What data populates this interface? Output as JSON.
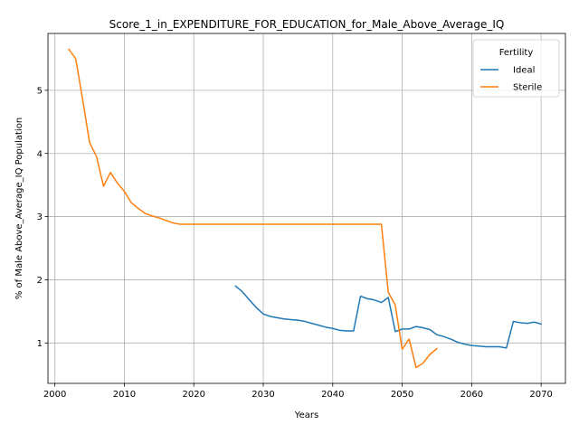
{
  "chart_data": {
    "type": "line",
    "title": "Score_1_in_EXPENDITURE_FOR_EDUCATION_for_Male_Above_Average_IQ",
    "xlabel": "Years",
    "ylabel": "% of Male Above_Average_IQ Population",
    "xlim": [
      1999,
      2073.5
    ],
    "ylim": [
      0.36,
      5.9
    ],
    "xticks": [
      2000,
      2010,
      2020,
      2030,
      2040,
      2050,
      2060,
      2070
    ],
    "yticks": [
      1,
      2,
      3,
      4,
      5
    ],
    "grid": true,
    "legend": {
      "title": "Fertility",
      "placement": "top-right"
    },
    "series": [
      {
        "name": "Ideal",
        "color": "#1f77b4",
        "x": [
          2026,
          2027,
          2028,
          2029,
          2030,
          2031,
          2032,
          2033,
          2034,
          2035,
          2036,
          2037,
          2038,
          2039,
          2040,
          2041,
          2042,
          2043,
          2044,
          2045,
          2046,
          2047,
          2048,
          2049,
          2050,
          2051,
          2052,
          2053,
          2054,
          2055,
          2056,
          2057,
          2058,
          2059,
          2060,
          2061,
          2062,
          2063,
          2064,
          2065,
          2066,
          2067,
          2068,
          2069,
          2070
        ],
        "y": [
          1.9,
          1.81,
          1.68,
          1.56,
          1.46,
          1.42,
          1.4,
          1.38,
          1.37,
          1.36,
          1.34,
          1.31,
          1.28,
          1.25,
          1.23,
          1.2,
          1.19,
          1.19,
          1.74,
          1.7,
          1.68,
          1.64,
          1.72,
          1.18,
          1.22,
          1.22,
          1.26,
          1.24,
          1.21,
          1.13,
          1.1,
          1.06,
          1.01,
          0.98,
          0.96,
          0.95,
          0.94,
          0.94,
          0.94,
          0.92,
          1.34,
          1.32,
          1.31,
          1.33,
          1.3
        ]
      },
      {
        "name": "Sterile",
        "color": "#ff7f0e",
        "x": [
          2002,
          2003,
          2004,
          2005,
          2006,
          2007,
          2008,
          2009,
          2010,
          2011,
          2012,
          2013,
          2014,
          2015,
          2016,
          2017,
          2018,
          2019,
          2020,
          2025,
          2030,
          2035,
          2040,
          2045,
          2047,
          2048,
          2049,
          2050,
          2051,
          2052,
          2053,
          2054,
          2055
        ],
        "y": [
          5.65,
          5.5,
          4.85,
          4.17,
          3.95,
          3.48,
          3.7,
          3.53,
          3.4,
          3.22,
          3.13,
          3.05,
          3.01,
          2.98,
          2.94,
          2.9,
          2.88,
          2.88,
          2.88,
          2.88,
          2.88,
          2.88,
          2.88,
          2.88,
          2.88,
          1.8,
          1.6,
          0.9,
          1.06,
          0.61,
          0.68,
          0.82,
          0.91
        ]
      }
    ]
  }
}
